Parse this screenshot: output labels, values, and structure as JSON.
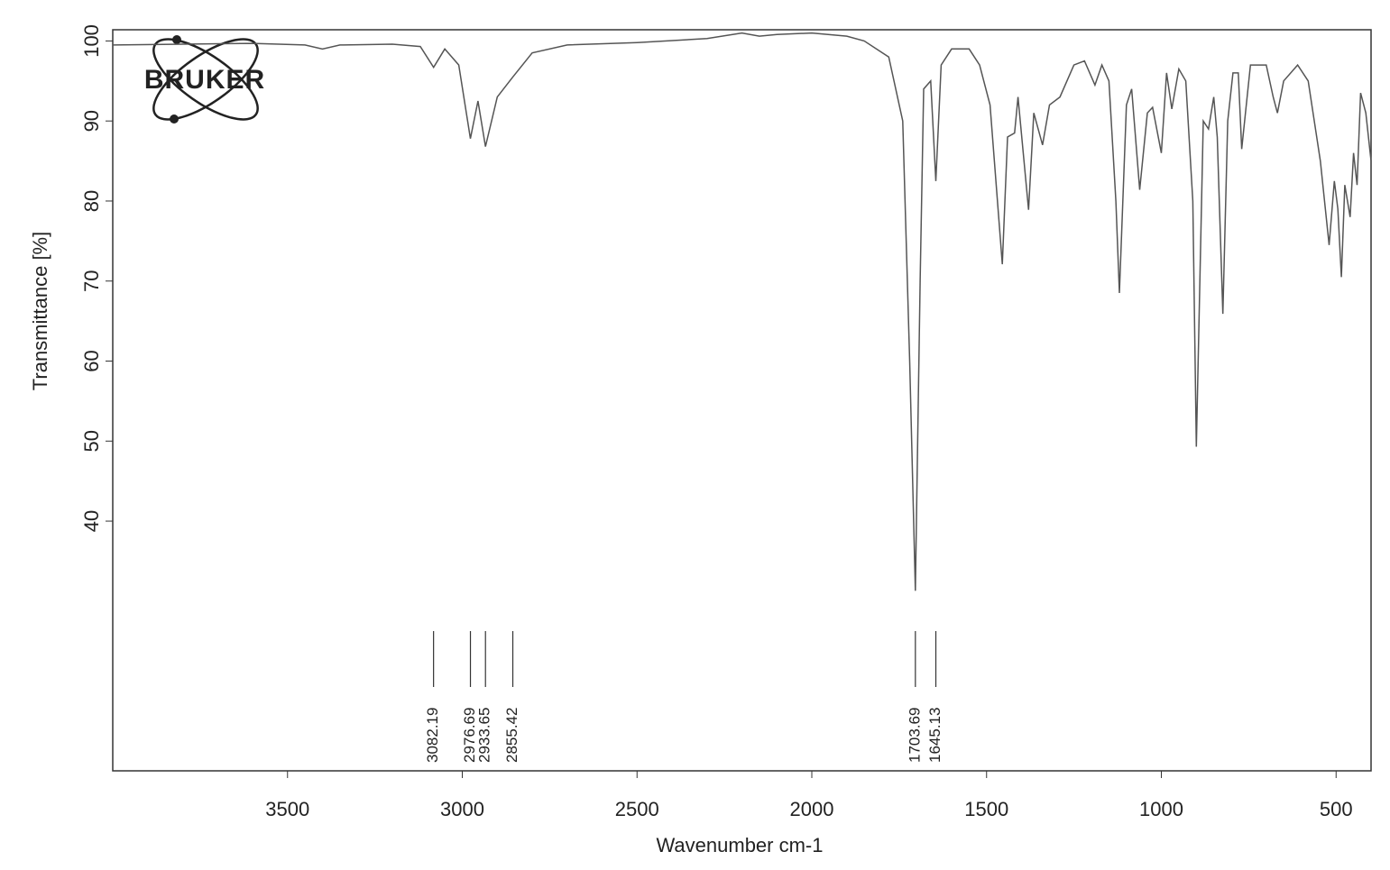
{
  "chart_data": {
    "type": "line",
    "logo": "BRUKER",
    "xlabel": "Wavenumber cm-1",
    "ylabel": "Transmittance [%]",
    "xlim": [
      4000,
      400
    ],
    "ylim": [
      8.8,
      101.4
    ],
    "xticks": [
      3500,
      3000,
      2500,
      2000,
      1500,
      1000,
      500
    ],
    "yticks": [
      40,
      50,
      60,
      70,
      80,
      90,
      100
    ],
    "color": "#555555",
    "x": [
      4000,
      3800,
      3600,
      3450,
      3400,
      3350,
      3200,
      3120,
      3082.19,
      3050,
      3010,
      2976.69,
      2955,
      2933.65,
      2900,
      2855.42,
      2800,
      2700,
      2500,
      2300,
      2200,
      2150,
      2100,
      2000,
      1900,
      1850,
      1780,
      1740,
      1720,
      1703.69,
      1690,
      1680,
      1660,
      1645.13,
      1630,
      1600,
      1550,
      1520,
      1490,
      1455,
      1440,
      1420,
      1410,
      1380,
      1365,
      1340,
      1320,
      1290,
      1250,
      1220,
      1190,
      1170,
      1150,
      1130,
      1120,
      1100,
      1085,
      1062,
      1040,
      1025,
      1000,
      985,
      970,
      950,
      930,
      910,
      900,
      880,
      865,
      850,
      840,
      824,
      810,
      795,
      780,
      770,
      745,
      700,
      680,
      668,
      650,
      610,
      580,
      545,
      520,
      505,
      495,
      485,
      475,
      460,
      450,
      440,
      430,
      415,
      400
    ],
    "values": [
      99.5,
      99.6,
      99.7,
      99.5,
      99.0,
      99.5,
      99.6,
      99.3,
      96.7,
      99.0,
      97.0,
      87.8,
      92.5,
      86.8,
      93.0,
      95.5,
      98.5,
      99.5,
      99.8,
      100.3,
      101.0,
      100.6,
      100.8,
      101.0,
      100.6,
      100.0,
      98.0,
      90.0,
      60.0,
      31.3,
      70.0,
      94.0,
      95.0,
      82.5,
      97.0,
      99.0,
      99.0,
      97.0,
      92.0,
      72.1,
      88.0,
      88.5,
      93.0,
      78.9,
      91.0,
      87.0,
      92.0,
      93.0,
      97.0,
      97.5,
      94.5,
      97.0,
      95.0,
      80.0,
      68.5,
      92.0,
      94.0,
      81.4,
      91.0,
      91.7,
      86.0,
      96.0,
      91.5,
      96.5,
      95.0,
      80.0,
      49.3,
      90.0,
      89.0,
      93.0,
      88.0,
      65.9,
      90.0,
      96.0,
      96.0,
      86.5,
      97.0,
      97.0,
      93.0,
      91.0,
      95.0,
      97.0,
      95.0,
      85.0,
      74.5,
      82.5,
      79.0,
      70.5,
      82.0,
      78.0,
      86.0,
      82.0,
      93.5,
      91.0,
      85.0
    ],
    "peaks": [
      3082.19,
      2976.69,
      2933.65,
      2855.42,
      1703.69,
      1645.13
    ]
  }
}
